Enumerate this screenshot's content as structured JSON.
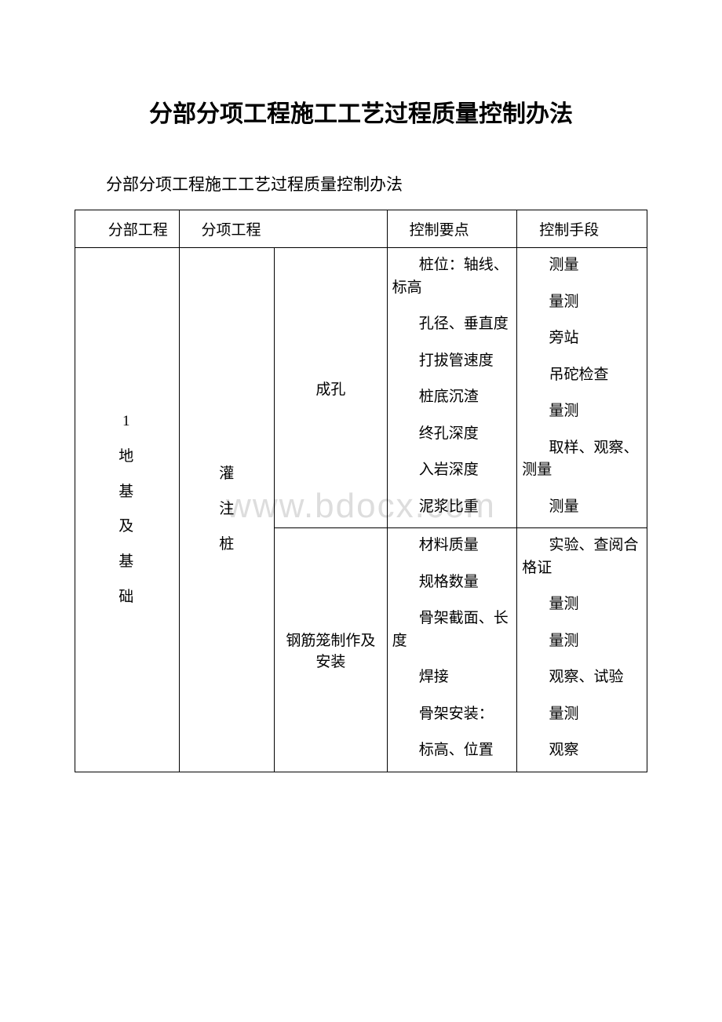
{
  "doc": {
    "title": "分部分项工程施工工艺过程质量控制办法",
    "subtitle": "分部分项工程施工工艺过程质量控制办法",
    "watermark": "www.bdocx.com"
  },
  "header": {
    "c1": "分部工程",
    "c2": "分项工程",
    "c3": "控制要点",
    "c4": "控制手段"
  },
  "row1": {
    "col1_lines": [
      "1",
      "地",
      "基",
      "及",
      "基",
      "础"
    ],
    "col2a_lines": [
      "灌",
      "",
      "注",
      "",
      "桩"
    ],
    "col2b_a": "成孔",
    "col2b_b": "钢筋笼制作及安装",
    "points_a": [
      "桩位：轴线、标高",
      "孔径、垂直度",
      "打拔管速度",
      "桩底沉渣",
      "终孔深度",
      "入岩深度",
      "泥浆比重"
    ],
    "means_a": [
      "测量",
      "量测",
      "旁站",
      "吊砣检查",
      "量测",
      "取样、观察、测量",
      "测量"
    ],
    "points_b": [
      "材料质量",
      "规格数量",
      "骨架截面、长度",
      "焊接",
      "骨架安装：",
      "标高、位置"
    ],
    "means_b": [
      "实验、查阅合格证",
      "量测",
      "量测",
      "观察、试验",
      "量测",
      "观察"
    ]
  },
  "style": {
    "text_color": "#000000",
    "bg_color": "#ffffff",
    "border_color": "#000000",
    "watermark_color": "#dddddd",
    "title_fontsize": 30,
    "body_fontsize": 19
  }
}
